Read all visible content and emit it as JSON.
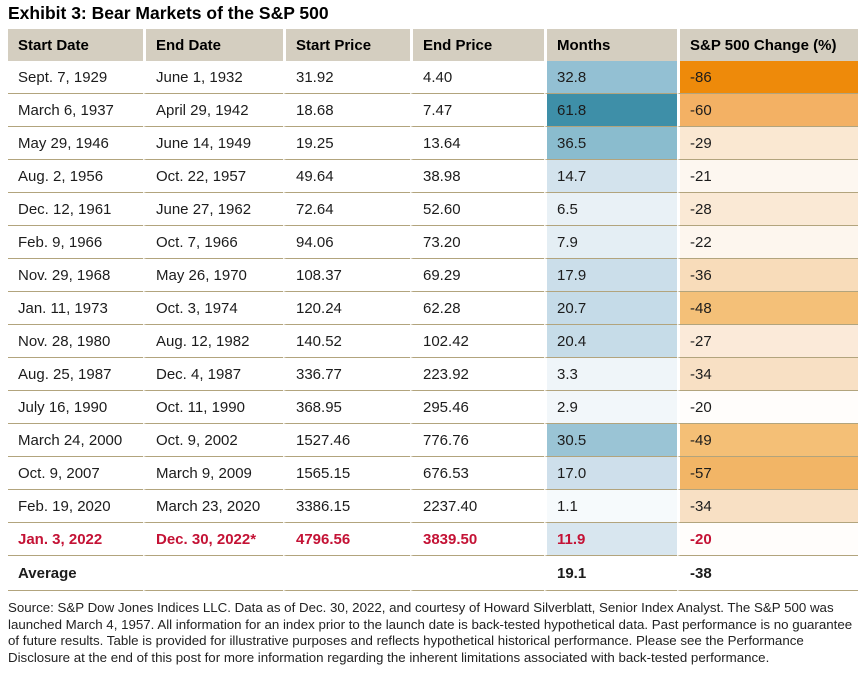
{
  "title": "Exhibit 3: Bear Markets of the S&P 500",
  "colors": {
    "header_bg": "#d4cec0",
    "row_divider": "#b2a47d",
    "highlight_text": "#c41235",
    "months_scale_min": "#f6fafc",
    "months_scale_max": "#3e8fa8",
    "change_scale_min": "#fffdfb",
    "change_scale_max": "#ee8a0a"
  },
  "chart_data": {
    "type": "table",
    "title": "Exhibit 3: Bear Markets of the S&P 500",
    "columns": [
      "Start Date",
      "End Date",
      "Start Price",
      "End Price",
      "Months",
      "S&P 500 Change (%)"
    ],
    "rows": [
      {
        "start_date": "Sept. 7, 1929",
        "end_date": "June 1, 1932",
        "start_price": "31.92",
        "end_price": "4.40",
        "months": "32.8",
        "change": "-86",
        "months_color": "#93c0d3",
        "change_color": "#ee8a0a",
        "highlight": false
      },
      {
        "start_date": "March 6, 1937",
        "end_date": "April 29, 1942",
        "start_price": "18.68",
        "end_price": "7.47",
        "months": "61.8",
        "change": "-60",
        "months_color": "#3e8fa8",
        "change_color": "#f3b164",
        "highlight": false
      },
      {
        "start_date": "May 29, 1946",
        "end_date": "June 14, 1949",
        "start_price": "19.25",
        "end_price": "13.64",
        "months": "36.5",
        "change": "-29",
        "months_color": "#8abcce",
        "change_color": "#fae8d2",
        "highlight": false
      },
      {
        "start_date": "Aug. 2, 1956",
        "end_date": "Oct. 22, 1957",
        "start_price": "49.64",
        "end_price": "38.98",
        "months": "14.7",
        "change": "-21",
        "months_color": "#d3e3ed",
        "change_color": "#fdf7f0",
        "highlight": false
      },
      {
        "start_date": "Dec. 12, 1961",
        "end_date": "June 27, 1962",
        "start_price": "72.64",
        "end_price": "52.60",
        "months": "6.5",
        "change": "-28",
        "months_color": "#e9f1f6",
        "change_color": "#fae9d5",
        "highlight": false
      },
      {
        "start_date": "Feb. 9, 1966",
        "end_date": "Oct. 7, 1966",
        "start_price": "94.06",
        "end_price": "73.20",
        "months": "7.9",
        "change": "-22",
        "months_color": "#e4eef4",
        "change_color": "#fdf6ee",
        "highlight": false
      },
      {
        "start_date": "Nov. 29, 1968",
        "end_date": "May 26, 1970",
        "start_price": "108.37",
        "end_price": "69.29",
        "months": "17.9",
        "change": "-36",
        "months_color": "#cbdeea",
        "change_color": "#f8dcba",
        "highlight": false
      },
      {
        "start_date": "Jan. 11, 1973",
        "end_date": "Oct. 3, 1974",
        "start_price": "120.24",
        "end_price": "62.28",
        "months": "20.7",
        "change": "-48",
        "months_color": "#c5dbe8",
        "change_color": "#f4c078",
        "highlight": false
      },
      {
        "start_date": "Nov. 28, 1980",
        "end_date": "Aug. 12, 1982",
        "start_price": "140.52",
        "end_price": "102.42",
        "months": "20.4",
        "change": "-27",
        "months_color": "#c6dce8",
        "change_color": "#fbead9",
        "highlight": false
      },
      {
        "start_date": "Aug. 25, 1987",
        "end_date": "Dec. 4, 1987",
        "start_price": "336.77",
        "end_price": "223.92",
        "months": "3.3",
        "change": "-34",
        "months_color": "#eff5f9",
        "change_color": "#f8e0c4",
        "highlight": false
      },
      {
        "start_date": "July 16, 1990",
        "end_date": "Oct. 11, 1990",
        "start_price": "368.95",
        "end_price": "295.46",
        "months": "2.9",
        "change": "-20",
        "months_color": "#f2f7fa",
        "change_color": "#fffdfb",
        "highlight": false
      },
      {
        "start_date": "March 24, 2000",
        "end_date": "Oct. 9, 2002",
        "start_price": "1527.46",
        "end_price": "776.76",
        "months": "30.5",
        "change": "-49",
        "months_color": "#9ac4d5",
        "change_color": "#f4bf76",
        "highlight": false
      },
      {
        "start_date": "Oct. 9, 2007",
        "end_date": "March 9, 2009",
        "start_price": "1565.15",
        "end_price": "676.53",
        "months": "17.0",
        "change": "-57",
        "months_color": "#cedfeb",
        "change_color": "#f2b566",
        "highlight": false
      },
      {
        "start_date": "Feb. 19, 2020",
        "end_date": "March 23, 2020",
        "start_price": "3386.15",
        "end_price": "2237.40",
        "months": "1.1",
        "change": "-34",
        "months_color": "#f6fafc",
        "change_color": "#f8e0c4",
        "highlight": false
      },
      {
        "start_date": "Jan. 3, 2022",
        "end_date": "Dec. 30, 2022*",
        "start_price": "4796.56",
        "end_price": "3839.50",
        "months": "11.9",
        "change": "-20",
        "months_color": "#d8e6ef",
        "change_color": "#fffdfb",
        "highlight": true
      }
    ],
    "average": {
      "label": "Average",
      "months": "19.1",
      "change": "-38"
    },
    "layout": {
      "heatmap_columns": [
        "Months",
        "S&P 500 Change (%)"
      ],
      "grid": "horizontal-rules-only"
    }
  },
  "footer": {
    "text": "Source: S&P Dow Jones Indices LLC. Data as of Dec. 30, 2022, and courtesy of Howard Silverblatt, Senior Index Analyst. The S&P 500 was launched March 4, 1957. All information for an index prior to the launch date is back-tested hypothetical data. Past performance is no guarantee of future results. Table is provided for illustrative purposes and reflects hypothetical historical performance. Please see the Performance Disclosure at the end of this post for more information regarding the inherent limitations associated with back-tested performance."
  }
}
